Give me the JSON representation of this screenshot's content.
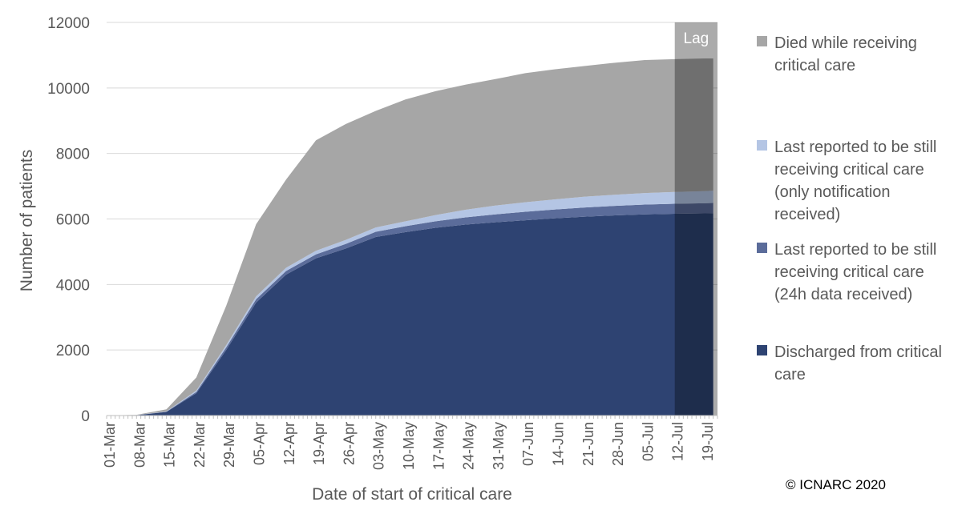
{
  "chart_data": {
    "type": "area",
    "stacked": true,
    "ylabel": "Number of patients",
    "xlabel": "Date of start of critical care",
    "ylim": [
      0,
      12000
    ],
    "yticks": [
      0,
      2000,
      4000,
      6000,
      8000,
      10000,
      12000
    ],
    "x_tick_labels": [
      "01-Mar",
      "08-Mar",
      "15-Mar",
      "22-Mar",
      "29-Mar",
      "05-Apr",
      "12-Apr",
      "19-Apr",
      "26-Apr",
      "03-May",
      "10-May",
      "17-May",
      "24-May",
      "31-May",
      "07-Jun",
      "14-Jun",
      "21-Jun",
      "28-Jun",
      "05-Jul",
      "12-Jul",
      "19-Jul"
    ],
    "x_dates": [
      "01-Mar",
      "08-Mar",
      "15-Mar",
      "22-Mar",
      "29-Mar",
      "05-Apr",
      "12-Apr",
      "19-Apr",
      "26-Apr",
      "03-May",
      "10-May",
      "17-May",
      "24-May",
      "31-May",
      "07-Jun",
      "14-Jun",
      "21-Jun",
      "28-Jun",
      "05-Jul",
      "12-Jul",
      "19-Jul",
      "21-Jul"
    ],
    "lag_label": "Lag",
    "lag_start": "12-Jul",
    "gridlines": true,
    "legend_position": "right",
    "series": [
      {
        "name": "Discharged from critical care",
        "color": "#2e4372",
        "values": [
          0,
          10,
          110,
          680,
          2000,
          3450,
          4300,
          4800,
          5100,
          5450,
          5600,
          5730,
          5830,
          5900,
          5960,
          6020,
          6070,
          6110,
          6140,
          6160,
          6170,
          6175
        ]
      },
      {
        "name": "Last reported to be still receiving critical care (24h data received)",
        "color": "#5b6c9a",
        "values": [
          0,
          2,
          8,
          40,
          80,
          100,
          110,
          120,
          140,
          160,
          180,
          200,
          220,
          240,
          260,
          270,
          280,
          290,
          300,
          305,
          310,
          315
        ]
      },
      {
        "name": "Last reported to be still receiving critical care (only notification received)",
        "color": "#b4c5e4",
        "values": [
          0,
          3,
          10,
          40,
          70,
          90,
          100,
          110,
          120,
          130,
          150,
          190,
          230,
          270,
          290,
          310,
          330,
          340,
          350,
          360,
          370,
          375
        ]
      },
      {
        "name": "Died while receiving critical care",
        "color": "#a6a6a6",
        "values": [
          0,
          5,
          60,
          400,
          1200,
          2200,
          2690,
          3370,
          3540,
          3560,
          3720,
          3780,
          3820,
          3860,
          3940,
          3970,
          3990,
          4030,
          4060,
          4055,
          4050,
          4035
        ]
      }
    ]
  },
  "legend_order": [
    3,
    2,
    1,
    0
  ],
  "copyright": "© ICNARC 2020"
}
